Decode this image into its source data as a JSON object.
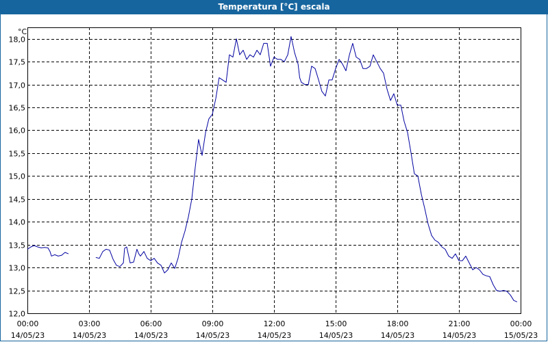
{
  "window": {
    "title": "Temperatura [°C] escala"
  },
  "chart_data": {
    "type": "line",
    "title": "Temperatura [°C] escala",
    "ylabel": "°C",
    "xlabel": "",
    "ylim": [
      12.0,
      18.25
    ],
    "xlim": [
      0,
      24
    ],
    "grid": true,
    "y_ticks": [
      {
        "value": 12.0,
        "label": "12,0"
      },
      {
        "value": 12.5,
        "label": "12,5"
      },
      {
        "value": 13.0,
        "label": "13,0"
      },
      {
        "value": 13.5,
        "label": "13,5"
      },
      {
        "value": 14.0,
        "label": "14,0"
      },
      {
        "value": 14.5,
        "label": "14,5"
      },
      {
        "value": 15.0,
        "label": "15,0"
      },
      {
        "value": 15.5,
        "label": "15,5"
      },
      {
        "value": 16.0,
        "label": "16,0"
      },
      {
        "value": 16.5,
        "label": "16,5"
      },
      {
        "value": 17.0,
        "label": "17,0"
      },
      {
        "value": 17.5,
        "label": "17,5"
      },
      {
        "value": 18.0,
        "label": "18,0"
      }
    ],
    "x_ticks": [
      {
        "value": 0,
        "time": "00:00",
        "date": "14/05/23"
      },
      {
        "value": 3,
        "time": "03:00",
        "date": "14/05/23"
      },
      {
        "value": 6,
        "time": "06:00",
        "date": "14/05/23"
      },
      {
        "value": 9,
        "time": "09:00",
        "date": "14/05/23"
      },
      {
        "value": 12,
        "time": "12:00",
        "date": "14/05/23"
      },
      {
        "value": 15,
        "time": "15:00",
        "date": "14/05/23"
      },
      {
        "value": 18,
        "time": "18:00",
        "date": "14/05/23"
      },
      {
        "value": 21,
        "time": "21:00",
        "date": "14/05/23"
      },
      {
        "value": 24,
        "time": "00:00",
        "date": "15/05/23"
      }
    ],
    "series": [
      {
        "color": "#0000a0",
        "segments": [
          [
            [
              0.0,
              13.4
            ],
            [
              0.17,
              13.45
            ],
            [
              0.33,
              13.48
            ],
            [
              0.5,
              13.45
            ],
            [
              0.67,
              13.43
            ],
            [
              0.83,
              13.44
            ],
            [
              1.0,
              13.43
            ],
            [
              1.1,
              13.35
            ],
            [
              1.17,
              13.25
            ],
            [
              1.33,
              13.28
            ],
            [
              1.5,
              13.25
            ],
            [
              1.67,
              13.27
            ],
            [
              1.83,
              13.33
            ],
            [
              2.0,
              13.3
            ]
          ],
          [
            [
              3.33,
              13.22
            ],
            [
              3.5,
              13.2
            ],
            [
              3.67,
              13.35
            ],
            [
              3.83,
              13.4
            ],
            [
              4.0,
              13.38
            ],
            [
              4.17,
              13.18
            ],
            [
              4.33,
              13.05
            ],
            [
              4.5,
              13.02
            ],
            [
              4.67,
              13.1
            ],
            [
              4.73,
              13.42
            ],
            [
              4.83,
              13.45
            ],
            [
              4.93,
              13.25
            ],
            [
              5.0,
              13.1
            ],
            [
              5.17,
              13.12
            ],
            [
              5.33,
              13.4
            ],
            [
              5.42,
              13.3
            ],
            [
              5.5,
              13.25
            ],
            [
              5.67,
              13.35
            ],
            [
              5.83,
              13.2
            ],
            [
              6.0,
              13.15
            ],
            [
              6.17,
              13.2
            ],
            [
              6.33,
              13.1
            ],
            [
              6.5,
              13.05
            ],
            [
              6.67,
              12.88
            ],
            [
              6.83,
              12.95
            ],
            [
              7.0,
              13.1
            ],
            [
              7.17,
              12.98
            ],
            [
              7.33,
              13.2
            ],
            [
              7.5,
              13.55
            ],
            [
              7.67,
              13.8
            ],
            [
              7.83,
              14.1
            ],
            [
              8.0,
              14.5
            ],
            [
              8.17,
              15.2
            ],
            [
              8.33,
              15.8
            ],
            [
              8.5,
              15.45
            ],
            [
              8.67,
              15.95
            ],
            [
              8.83,
              16.25
            ],
            [
              9.0,
              16.35
            ],
            [
              9.17,
              16.7
            ],
            [
              9.33,
              17.15
            ],
            [
              9.5,
              17.1
            ],
            [
              9.67,
              17.05
            ],
            [
              9.83,
              17.65
            ],
            [
              10.0,
              17.6
            ],
            [
              10.17,
              18.0
            ],
            [
              10.33,
              17.65
            ],
            [
              10.5,
              17.75
            ],
            [
              10.67,
              17.55
            ],
            [
              10.83,
              17.65
            ],
            [
              11.0,
              17.6
            ],
            [
              11.17,
              17.75
            ],
            [
              11.33,
              17.65
            ],
            [
              11.5,
              17.9
            ],
            [
              11.67,
              17.9
            ],
            [
              11.83,
              17.4
            ],
            [
              12.0,
              17.6
            ],
            [
              12.17,
              17.55
            ],
            [
              12.33,
              17.55
            ],
            [
              12.5,
              17.5
            ],
            [
              12.67,
              17.65
            ],
            [
              12.83,
              18.05
            ],
            [
              12.93,
              17.85
            ],
            [
              13.0,
              17.7
            ],
            [
              13.17,
              17.45
            ],
            [
              13.25,
              17.15
            ],
            [
              13.33,
              17.05
            ],
            [
              13.5,
              17.0
            ],
            [
              13.67,
              17.0
            ],
            [
              13.83,
              17.4
            ],
            [
              14.0,
              17.35
            ],
            [
              14.17,
              17.1
            ],
            [
              14.33,
              16.85
            ],
            [
              14.5,
              16.75
            ],
            [
              14.67,
              17.1
            ],
            [
              14.83,
              17.1
            ],
            [
              15.0,
              17.35
            ],
            [
              15.17,
              17.55
            ],
            [
              15.33,
              17.45
            ],
            [
              15.5,
              17.3
            ],
            [
              15.67,
              17.65
            ],
            [
              15.83,
              17.9
            ],
            [
              16.0,
              17.6
            ],
            [
              16.17,
              17.55
            ],
            [
              16.33,
              17.35
            ],
            [
              16.5,
              17.35
            ],
            [
              16.67,
              17.4
            ],
            [
              16.83,
              17.65
            ],
            [
              17.0,
              17.5
            ],
            [
              17.17,
              17.35
            ],
            [
              17.33,
              17.25
            ],
            [
              17.5,
              16.9
            ],
            [
              17.67,
              16.65
            ],
            [
              17.83,
              16.8
            ],
            [
              18.0,
              16.55
            ],
            [
              18.17,
              16.55
            ],
            [
              18.33,
              16.2
            ],
            [
              18.5,
              15.95
            ],
            [
              18.67,
              15.5
            ],
            [
              18.83,
              15.05
            ],
            [
              19.0,
              15.0
            ],
            [
              19.17,
              14.6
            ],
            [
              19.33,
              14.3
            ],
            [
              19.5,
              13.95
            ],
            [
              19.67,
              13.7
            ],
            [
              19.83,
              13.6
            ],
            [
              20.0,
              13.55
            ],
            [
              20.17,
              13.45
            ],
            [
              20.33,
              13.4
            ],
            [
              20.5,
              13.25
            ],
            [
              20.67,
              13.2
            ],
            [
              20.83,
              13.3
            ],
            [
              21.0,
              13.15
            ],
            [
              21.17,
              13.15
            ],
            [
              21.33,
              13.25
            ],
            [
              21.5,
              13.1
            ],
            [
              21.67,
              12.95
            ],
            [
              21.83,
              13.0
            ],
            [
              22.0,
              12.95
            ],
            [
              22.17,
              12.85
            ],
            [
              22.33,
              12.82
            ],
            [
              22.5,
              12.8
            ],
            [
              22.67,
              12.62
            ],
            [
              22.83,
              12.5
            ],
            [
              23.0,
              12.48
            ],
            [
              23.17,
              12.5
            ],
            [
              23.33,
              12.48
            ],
            [
              23.5,
              12.4
            ],
            [
              23.67,
              12.28
            ],
            [
              23.83,
              12.25
            ]
          ]
        ]
      }
    ]
  }
}
